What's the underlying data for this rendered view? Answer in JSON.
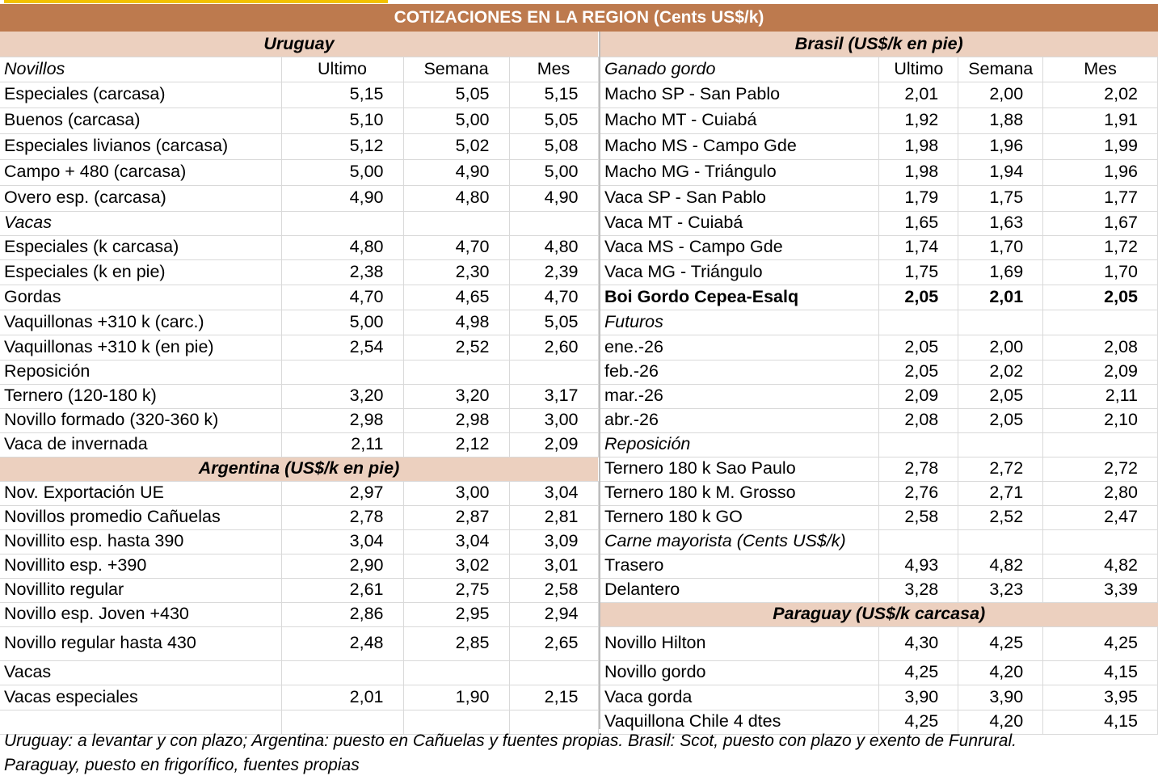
{
  "title": "COTIZACIONES EN LA REGION (Cents US$/k)",
  "uruguay": {
    "section_title": "Uruguay",
    "header": {
      "label": "Novillos",
      "ultimo": "Ultimo",
      "semana": "Semana",
      "mes": "Mes"
    },
    "rows": [
      {
        "label": "Especiales (carcasa)",
        "ultimo": "5,15",
        "semana": "5,05",
        "mes": "5,15"
      },
      {
        "label": "Buenos (carcasa)",
        "ultimo": "5,10",
        "semana": "5,00",
        "mes": "5,05"
      },
      {
        "label": "Especiales livianos (carcasa)",
        "ultimo": "5,12",
        "semana": "5,02",
        "mes": "5,08"
      },
      {
        "label": "Campo + 480 (carcasa)",
        "ultimo": "5,00",
        "semana": "4,90",
        "mes": "5,00"
      },
      {
        "label": "Overo esp. (carcasa)",
        "ultimo": "4,90",
        "semana": "4,80",
        "mes": "4,90"
      },
      {
        "label": "Vacas",
        "ultimo": "",
        "semana": "",
        "mes": "",
        "italic": true
      },
      {
        "label": "Especiales (k carcasa)",
        "ultimo": "4,80",
        "semana": "4,70",
        "mes": "4,80"
      },
      {
        "label": "Especiales (k en pie)",
        "ultimo": "2,38",
        "semana": "2,30",
        "mes": "2,39"
      },
      {
        "label": "Gordas",
        "ultimo": "4,70",
        "semana": "4,65",
        "mes": "4,70"
      },
      {
        "label": "Vaquillonas +310 k (carc.)",
        "ultimo": "5,00",
        "semana": "4,98",
        "mes": "5,05"
      },
      {
        "label": "Vaquillonas +310 k (en pie)",
        "ultimo": "2,54",
        "semana": "2,52",
        "mes": "2,60"
      },
      {
        "label": "Reposición",
        "ultimo": "",
        "semana": "",
        "mes": ""
      },
      {
        "label": "Ternero (120-180 k)",
        "ultimo": "3,20",
        "semana": "3,20",
        "mes": "3,17"
      },
      {
        "label": "Novillo formado (320-360 k)",
        "ultimo": "2,98",
        "semana": "2,98",
        "mes": "3,00"
      },
      {
        "label": "Vaca de invernada",
        "ultimo": "2,11",
        "semana": "2,12",
        "mes": "2,09"
      }
    ]
  },
  "argentina": {
    "section_title": "Argentina (US$/k en pie)",
    "rows": [
      {
        "label": "Nov. Exportación UE",
        "ultimo": "2,97",
        "semana": "3,00",
        "mes": "3,04"
      },
      {
        "label": "Novillos promedio Cañuelas",
        "ultimo": "2,78",
        "semana": "2,87",
        "mes": "2,81"
      },
      {
        "label": "Novillito esp. hasta 390",
        "ultimo": "3,04",
        "semana": "3,04",
        "mes": "3,09"
      },
      {
        "label": "Novillito esp. +390",
        "ultimo": "2,90",
        "semana": "3,02",
        "mes": "3,01"
      },
      {
        "label": "Novillito regular",
        "ultimo": "2,61",
        "semana": "2,75",
        "mes": "2,58"
      },
      {
        "label": "Novillo esp. Joven +430",
        "ultimo": "2,86",
        "semana": "2,95",
        "mes": "2,94"
      },
      {
        "label": "Novillo regular hasta 430",
        "ultimo": "2,48",
        "semana": "2,85",
        "mes": "2,65"
      },
      {
        "label": "Vacas",
        "ultimo": "",
        "semana": "",
        "mes": ""
      },
      {
        "label": "Vacas especiales",
        "ultimo": "2,01",
        "semana": "1,90",
        "mes": "2,15"
      },
      {
        "label": "",
        "ultimo": "",
        "semana": "",
        "mes": ""
      }
    ]
  },
  "brasil": {
    "section_title": "Brasil (US$/k en pie)",
    "header": {
      "label": "Ganado gordo",
      "ultimo": "Ultimo",
      "semana": "Semana",
      "mes": "Mes"
    },
    "rows": [
      {
        "label": "Macho SP - San Pablo",
        "ultimo": "2,01",
        "semana": "2,00",
        "mes": "2,02"
      },
      {
        "label": "Macho MT - Cuiabá",
        "ultimo": "1,92",
        "semana": "1,88",
        "mes": "1,91"
      },
      {
        "label": "Macho MS - Campo Gde",
        "ultimo": "1,98",
        "semana": "1,96",
        "mes": "1,99"
      },
      {
        "label": "Macho MG - Triángulo",
        "ultimo": "1,98",
        "semana": "1,94",
        "mes": "1,96"
      },
      {
        "label": "Vaca SP - San Pablo",
        "ultimo": "1,79",
        "semana": "1,75",
        "mes": "1,77"
      },
      {
        "label": "Vaca MT - Cuiabá",
        "ultimo": "1,65",
        "semana": "1,63",
        "mes": "1,67"
      },
      {
        "label": "Vaca MS - Campo Gde",
        "ultimo": "1,74",
        "semana": "1,70",
        "mes": "1,72"
      },
      {
        "label": "Vaca MG - Triángulo",
        "ultimo": "1,75",
        "semana": "1,69",
        "mes": "1,70"
      },
      {
        "label": "Boi Gordo Cepea-Esalq",
        "ultimo": "2,05",
        "semana": "2,01",
        "mes": "2,05",
        "bold": true
      },
      {
        "label": "Futuros",
        "ultimo": "",
        "semana": "",
        "mes": "",
        "italic": true
      },
      {
        "label": "ene.-26",
        "ultimo": "2,05",
        "semana": "2,00",
        "mes": "2,08"
      },
      {
        "label": "feb.-26",
        "ultimo": "2,05",
        "semana": "2,02",
        "mes": "2,09"
      },
      {
        "label": "mar.-26",
        "ultimo": "2,09",
        "semana": "2,05",
        "mes": "2,11"
      },
      {
        "label": "abr.-26",
        "ultimo": "2,08",
        "semana": "2,05",
        "mes": "2,10"
      },
      {
        "label": "Reposición",
        "ultimo": "",
        "semana": "",
        "mes": "",
        "italic": true
      },
      {
        "label": "Ternero 180 k Sao Paulo",
        "ultimo": "2,78",
        "semana": "2,72",
        "mes": "2,72"
      },
      {
        "label": "Ternero 180 k M. Grosso",
        "ultimo": "2,76",
        "semana": "2,71",
        "mes": "2,80"
      },
      {
        "label": "Ternero 180 k GO",
        "ultimo": "2,58",
        "semana": "2,52",
        "mes": "2,47"
      },
      {
        "label": "Carne mayorista (Cents US$/k)",
        "ultimo": "",
        "semana": "",
        "mes": "",
        "italic": true
      },
      {
        "label": "Trasero",
        "ultimo": "4,93",
        "semana": "4,82",
        "mes": "4,82"
      },
      {
        "label": "Delantero",
        "ultimo": "3,28",
        "semana": "3,23",
        "mes": "3,39"
      }
    ]
  },
  "paraguay": {
    "section_title": "Paraguay (US$/k carcasa)",
    "rows": [
      {
        "label": "Novillo Hilton",
        "ultimo": "4,30",
        "semana": "4,25",
        "mes": "4,25"
      },
      {
        "label": "Novillo gordo",
        "ultimo": "4,25",
        "semana": "4,20",
        "mes": "4,15"
      },
      {
        "label": "Vaca gorda",
        "ultimo": "3,90",
        "semana": "3,90",
        "mes": "3,95"
      },
      {
        "label": "Vaquillona Chile 4 dtes",
        "ultimo": "4,25",
        "semana": "4,20",
        "mes": "4,15"
      }
    ]
  },
  "footnote": [
    "Uruguay: a levantar y con plazo; Argentina: puesto en Cañuelas y fuentes propias. Brasil: Scot, puesto con plazo y exento de Funrural.",
    "Paraguay, puesto en frigorífico, fuentes propias"
  ],
  "colors": {
    "title_bg": "#bd7a4e",
    "section_bg": "#ecd0bf",
    "accent_line": "#f2c200"
  }
}
